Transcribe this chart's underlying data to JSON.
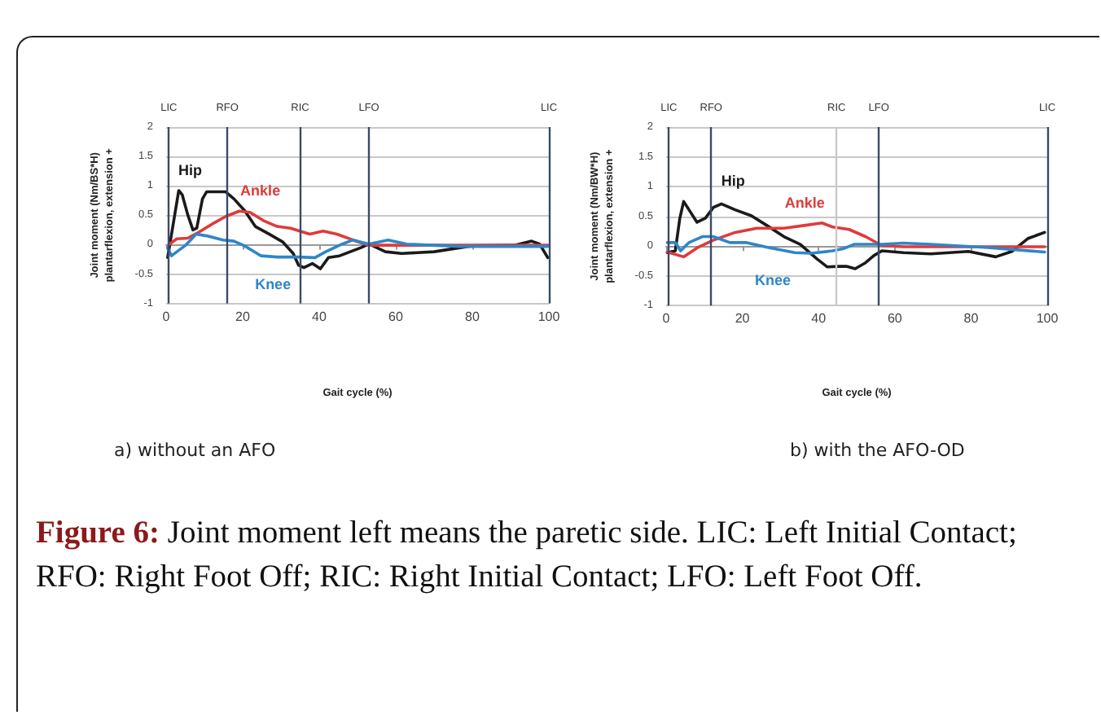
{
  "chart_data": [
    {
      "type": "line",
      "title": "a) without an AFO",
      "xlabel": "Gait cycle (%)",
      "ylabel": "Joint moment (Nm/BS*H)\nplantarflexion, extension +",
      "xlim": [
        0,
        100
      ],
      "xticks": [
        0,
        20,
        40,
        60,
        80,
        100
      ],
      "ylim": [
        -1,
        2
      ],
      "yticks": [
        -1,
        -0.5,
        0,
        0.5,
        1,
        1.5,
        2
      ],
      "grid": "y",
      "legend": false,
      "marker": "none",
      "line_style": "solid",
      "ref_lines": [
        {
          "axis": "x",
          "value": 0.7,
          "label": "LIC",
          "color": "#3b4a6b"
        },
        {
          "axis": "x",
          "value": 16,
          "label": "RFO",
          "color": "#3b4a6b"
        },
        {
          "axis": "x",
          "value": 35,
          "label": "RIC",
          "color": "#3b4a6b"
        },
        {
          "axis": "x",
          "value": 53,
          "label": "LFO",
          "color": "#3b4a6b"
        },
        {
          "axis": "x",
          "value": 100,
          "label": "LIC",
          "color": "#3b4a6b"
        }
      ],
      "series": [
        {
          "name": "Hip",
          "color": "#1a1a1a",
          "x": [
            0.4,
            2.1,
            3.3,
            4.2,
            5.6,
            7,
            8,
            9.5,
            10.6,
            13.4,
            15.5,
            17.7,
            20.5,
            23.3,
            26.9,
            30.4,
            33.2,
            34.6,
            36,
            38.2,
            40.3,
            42.4,
            45.3,
            48.1,
            50.9,
            53,
            57.3,
            61.5,
            70,
            79.9,
            91,
            95.5,
            97.6,
            99.7
          ],
          "values": [
            -0.22,
            0.45,
            0.92,
            0.85,
            0.52,
            0.25,
            0.28,
            0.78,
            0.9,
            0.9,
            0.9,
            0.78,
            0.58,
            0.31,
            0.18,
            0.05,
            -0.15,
            -0.35,
            -0.39,
            -0.32,
            -0.41,
            -0.22,
            -0.19,
            -0.12,
            -0.05,
            0.01,
            -0.12,
            -0.15,
            -0.12,
            -0.02,
            -0.01,
            0.06,
            0.01,
            -0.22
          ]
        },
        {
          "name": "Ankle",
          "color": "#e03a3a",
          "x": [
            0.7,
            2.8,
            5.6,
            8.5,
            12,
            15.6,
            19.1,
            21.9,
            25.4,
            29,
            32.5,
            37.5,
            41,
            44.6,
            48.8,
            53,
            62.9,
            99.7
          ],
          "values": [
            0,
            0.1,
            0.11,
            0.21,
            0.35,
            0.48,
            0.57,
            0.55,
            0.41,
            0.31,
            0.28,
            0.18,
            0.23,
            0.18,
            0.08,
            -0.01,
            -0.01,
            -0.01
          ]
        },
        {
          "name": "Knee",
          "color": "#2f86c8",
          "x": [
            0.4,
            1.4,
            2.8,
            4.9,
            6.4,
            7.8,
            10.6,
            14.9,
            17.7,
            20.5,
            24.8,
            29,
            34.6,
            38.9,
            41.7,
            46,
            48.8,
            53,
            58,
            62.9,
            77,
            99.7
          ],
          "values": [
            -0.05,
            -0.19,
            -0.12,
            -0.02,
            0.08,
            0.18,
            0.15,
            0.08,
            0.06,
            -0.02,
            -0.19,
            -0.21,
            -0.21,
            -0.22,
            -0.12,
            0.01,
            0.08,
            0.01,
            0.08,
            0.01,
            -0.03,
            -0.03
          ]
        }
      ],
      "annotations": [
        "Figure 6: Joint moment left means the paretic side. LIC: Left Initial Contact; RFO: Right Foot Off; RIC: Right Initial Contact; LFO: Left Foot Off."
      ]
    },
    {
      "type": "line",
      "title": "b) with the AFO-OD",
      "xlabel": "Gait cycle (%)",
      "ylabel": "Joint moment (Nm/BW*H)\nplantarflexion, extension +",
      "xlim": [
        0,
        100
      ],
      "xticks": [
        0,
        20,
        40,
        60,
        80,
        100
      ],
      "ylim": [
        -1,
        2
      ],
      "yticks": [
        -1,
        -0.5,
        0,
        0.5,
        1,
        1.5,
        2
      ],
      "grid": "y",
      "legend": false,
      "marker": "none",
      "line_style": "solid",
      "ref_lines": [
        {
          "axis": "x",
          "value": 0.7,
          "label": "LIC",
          "color": "#3b4a6b"
        },
        {
          "axis": "x",
          "value": 11.8,
          "label": "RFO",
          "color": "#3b4a6b"
        },
        {
          "axis": "x",
          "value": 44.7,
          "label": "RIC",
          "color": "#c8c8c8"
        },
        {
          "axis": "x",
          "value": 55.8,
          "label": "LFO",
          "color": "#3b4a6b"
        },
        {
          "axis": "x",
          "value": 100,
          "label": "LIC",
          "color": "#3b4a6b"
        }
      ],
      "series": [
        {
          "name": "Hip",
          "color": "#1a1a1a",
          "x": [
            0.3,
            2.4,
            3.6,
            4.6,
            6,
            8.1,
            10.3,
            12.4,
            14.5,
            18.1,
            22.4,
            26.6,
            30.9,
            35.2,
            39.5,
            42.3,
            45.2,
            47.3,
            49.6,
            52.3,
            54.5,
            56.6,
            62.3,
            69.4,
            79.3,
            86.5,
            90.7,
            95,
            99.3
          ],
          "values": [
            -0.11,
            -0.08,
            0.47,
            0.75,
            0.61,
            0.4,
            0.47,
            0.65,
            0.71,
            0.61,
            0.51,
            0.34,
            0.16,
            0.03,
            -0.21,
            -0.35,
            -0.34,
            -0.34,
            -0.38,
            -0.28,
            -0.16,
            -0.08,
            -0.11,
            -0.13,
            -0.09,
            -0.18,
            -0.09,
            0.13,
            0.23
          ]
        },
        {
          "name": "Ankle",
          "color": "#e03a3a",
          "x": [
            0.3,
            4.6,
            8.1,
            12.4,
            18.1,
            23.8,
            30.9,
            36.6,
            40.9,
            43.7,
            48,
            52.3,
            56.6,
            62.3,
            99.3
          ],
          "values": [
            -0.1,
            -0.18,
            -0.03,
            0.1,
            0.23,
            0.3,
            0.3,
            0.35,
            0.39,
            0.32,
            0.28,
            0.16,
            0.01,
            -0.01,
            -0.01
          ]
        },
        {
          "name": "Knee",
          "color": "#2f86c8",
          "x": [
            0.3,
            2.4,
            3.8,
            6,
            9.5,
            12.4,
            16.7,
            20.9,
            26.6,
            33.8,
            38,
            43.7,
            46.6,
            49.4,
            56.6,
            62.3,
            69.4,
            83.6,
            99.3
          ],
          "values": [
            0.06,
            0.06,
            -0.08,
            0.06,
            0.16,
            0.16,
            0.06,
            0.06,
            -0.02,
            -0.11,
            -0.12,
            -0.08,
            -0.04,
            0.03,
            0.03,
            0.05,
            0.03,
            -0.02,
            -0.1
          ]
        }
      ]
    }
  ]
}
